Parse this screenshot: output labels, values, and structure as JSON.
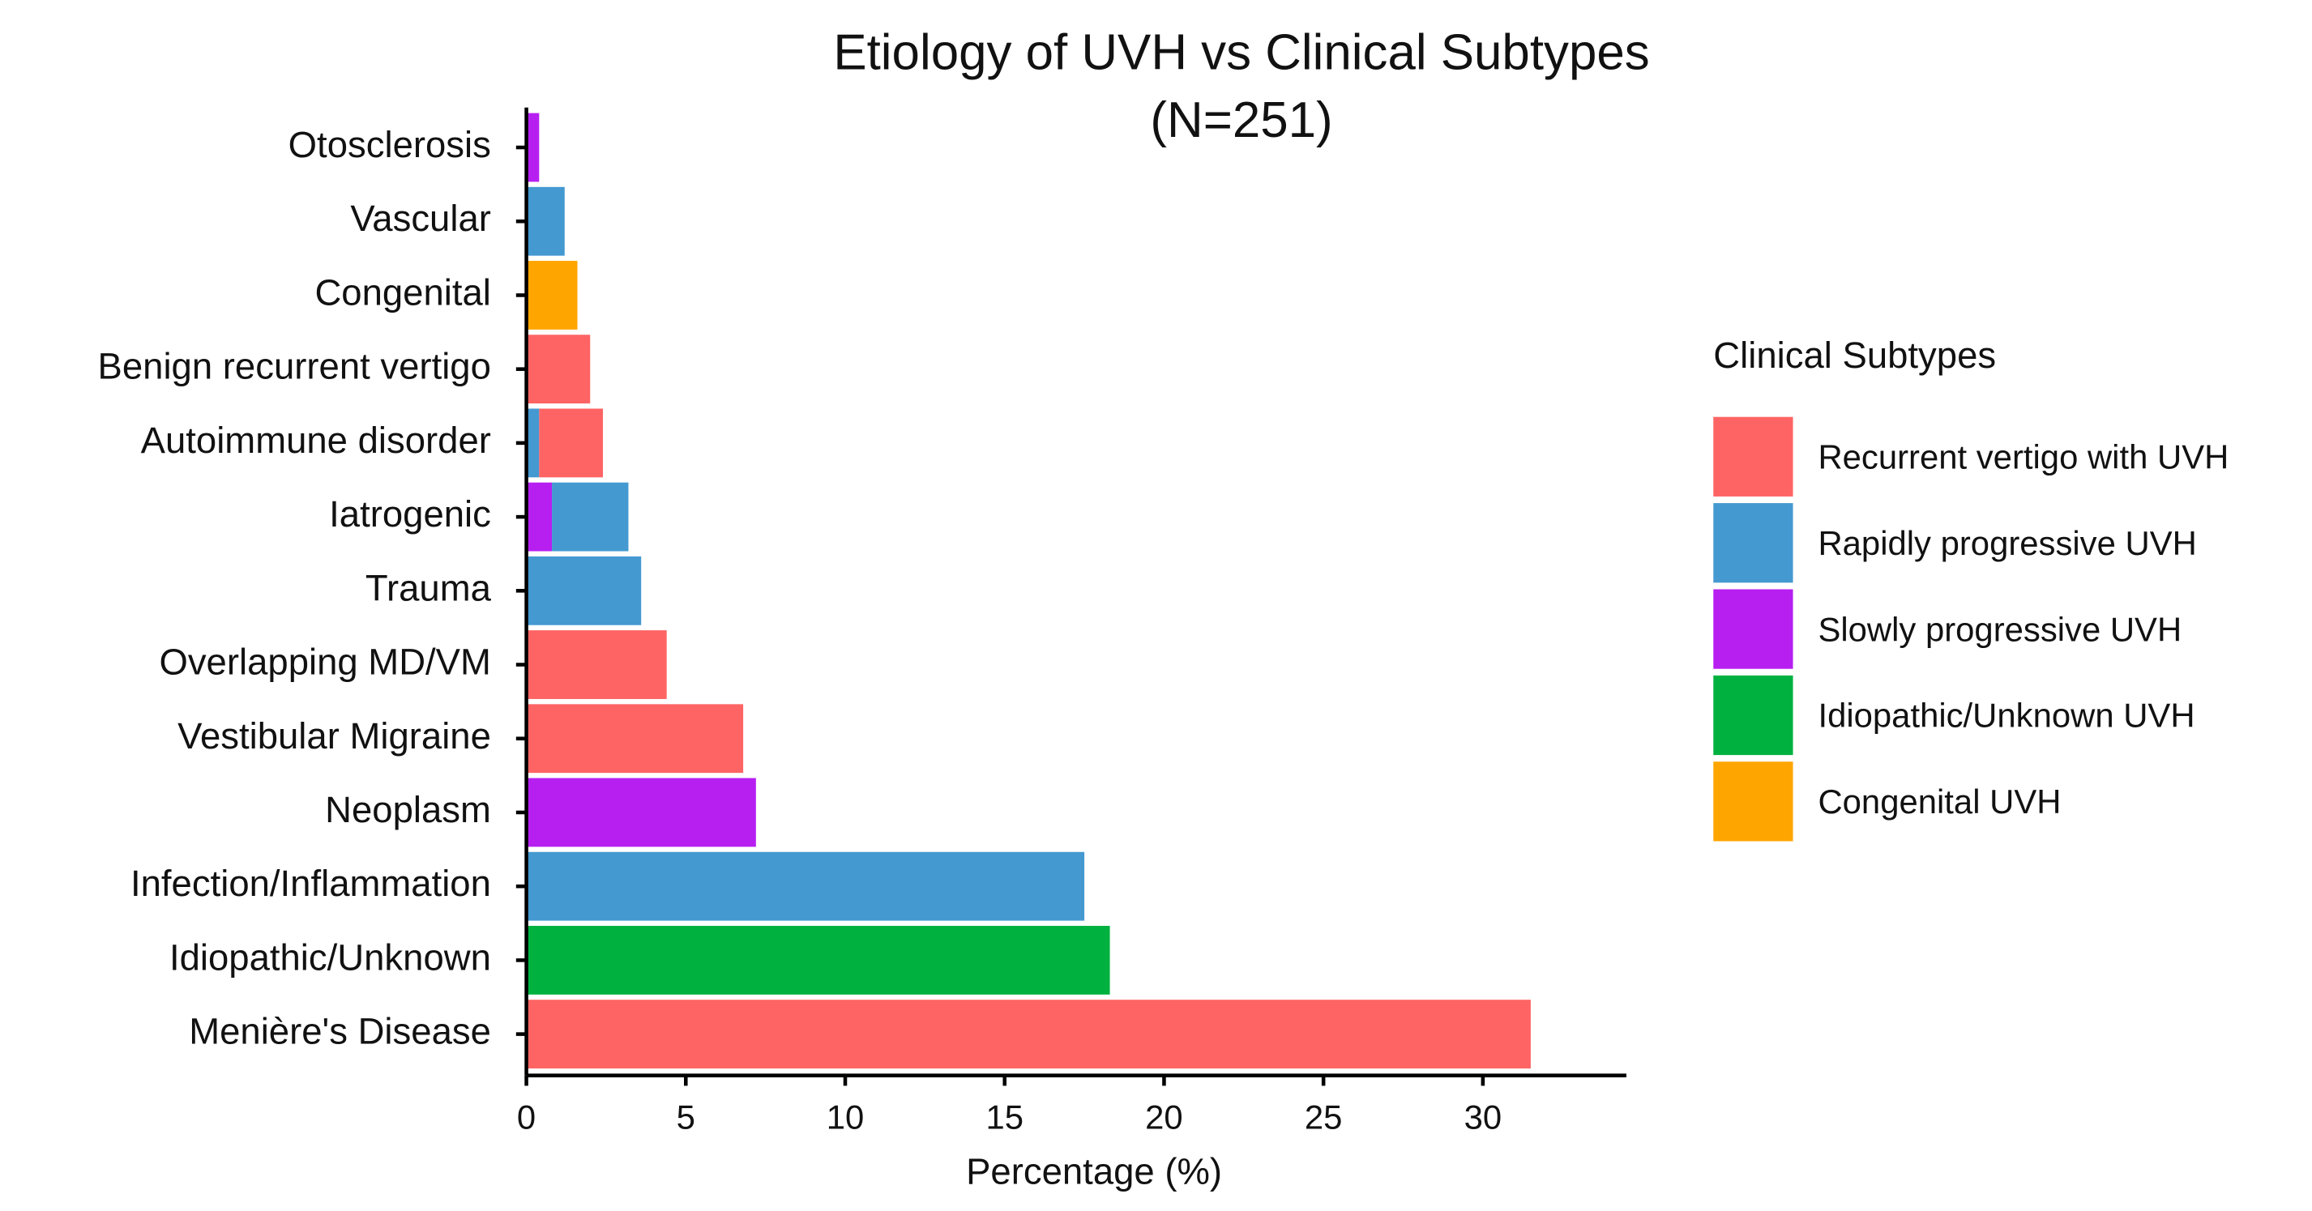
{
  "chart_data": {
    "type": "stacked-barh",
    "title": "Etiology of UVH vs Clinical Subtypes",
    "subtitle": "(N=251)",
    "x_label": "Percentage (%)",
    "legend_title": "Clinical Subtypes",
    "legend_position": "right",
    "categories": [
      "Otosclerosis",
      "Vascular",
      "Congenital",
      "Benign recurrent vertigo",
      "Autoimmune disorder",
      "Iatrogenic",
      "Trauma",
      "Overlapping MD/VM",
      "Vestibular Migraine",
      "Neoplasm",
      "Infection/Inflammation",
      "Idiopathic/Unknown",
      "Menière's Disease"
    ],
    "series": [
      {
        "name": "Recurrent vertigo with UVH",
        "color": "#fe6464",
        "values": [
          null,
          null,
          null,
          2.0,
          2.0,
          null,
          null,
          4.4,
          6.8,
          null,
          null,
          null,
          31.5
        ]
      },
      {
        "name": "Rapidly progressive UVH",
        "color": "#4499d1",
        "values": [
          null,
          1.2,
          null,
          null,
          0.4,
          2.4,
          3.6,
          null,
          null,
          null,
          17.5,
          null,
          null
        ]
      },
      {
        "name": "Slowly progressive UVH",
        "color": "#b71ff1",
        "values": [
          0.4,
          null,
          null,
          null,
          null,
          0.8,
          null,
          null,
          null,
          7.2,
          null,
          null,
          null
        ]
      },
      {
        "name": "Idiopathic/Unknown UVH",
        "color": "#00b140",
        "values": [
          null,
          null,
          null,
          null,
          null,
          null,
          null,
          null,
          null,
          null,
          null,
          18.3,
          null
        ]
      },
      {
        "name": "Congenital UVH",
        "color": "#ffa500",
        "values": [
          null,
          null,
          1.6,
          null,
          null,
          null,
          null,
          null,
          null,
          null,
          null,
          null,
          null
        ]
      }
    ],
    "xlim": [
      0,
      34.5
    ],
    "xticks": [
      0,
      5,
      10,
      15,
      20,
      25,
      30
    ]
  }
}
